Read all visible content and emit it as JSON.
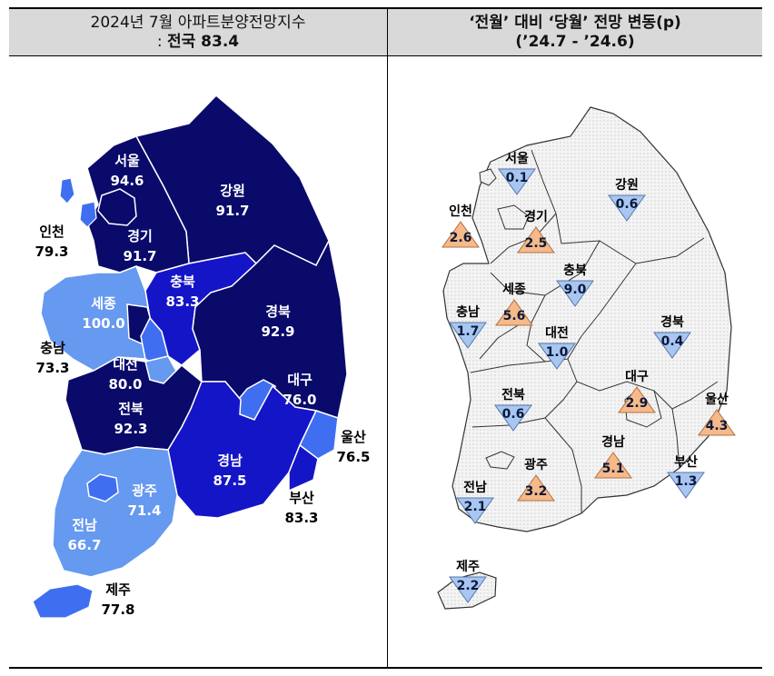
{
  "header_left": {
    "line1": "2024년 7월 아파트분양전망지수",
    "line2_prefix": ": ",
    "line2_bold": "전국 83.4"
  },
  "header_right": {
    "line1": "‘전월’ 대비 ‘당월’ 전망 변동(p)",
    "line2": "(’24.7   -  ’24.6)"
  },
  "colors": {
    "navy": "#0a0a6b",
    "blue": "#1515c8",
    "mid_blue": "#3f6ff0",
    "light_blue": "#6699f0",
    "up_fill": "#f6b98a",
    "down_fill": "#a9c6f2"
  },
  "chart_data": [
    {
      "type": "map",
      "title": "2024년 7월 아파트분양전망지수",
      "subtitle": "전국 83.4",
      "regions": [
        {
          "name": "서울",
          "value": "94.6"
        },
        {
          "name": "인천",
          "value": "79.3"
        },
        {
          "name": "경기",
          "value": "91.7"
        },
        {
          "name": "강원",
          "value": "91.7"
        },
        {
          "name": "세종",
          "value": "100.0"
        },
        {
          "name": "충북",
          "value": "83.3"
        },
        {
          "name": "충남",
          "value": "73.3"
        },
        {
          "name": "대전",
          "value": "80.0"
        },
        {
          "name": "경북",
          "value": "92.9"
        },
        {
          "name": "대구",
          "value": "76.0"
        },
        {
          "name": "전북",
          "value": "92.3"
        },
        {
          "name": "울산",
          "value": "76.5"
        },
        {
          "name": "경남",
          "value": "87.5"
        },
        {
          "name": "부산",
          "value": "83.3"
        },
        {
          "name": "광주",
          "value": "71.4"
        },
        {
          "name": "전남",
          "value": "66.7"
        },
        {
          "name": "제주",
          "value": "77.8"
        }
      ]
    },
    {
      "type": "map",
      "title": "‘전월’ 대비 ‘당월’ 전망 변동(p)",
      "regions": [
        {
          "name": "서울",
          "value": "0.1",
          "direction": "down"
        },
        {
          "name": "인천",
          "value": "2.6",
          "direction": "up"
        },
        {
          "name": "경기",
          "value": "2.5",
          "direction": "up"
        },
        {
          "name": "강원",
          "value": "0.6",
          "direction": "down"
        },
        {
          "name": "세종",
          "value": "5.6",
          "direction": "up"
        },
        {
          "name": "충북",
          "value": "9.0",
          "direction": "down"
        },
        {
          "name": "충남",
          "value": "1.7",
          "direction": "down"
        },
        {
          "name": "대전",
          "value": "1.0",
          "direction": "down"
        },
        {
          "name": "경북",
          "value": "0.4",
          "direction": "down"
        },
        {
          "name": "대구",
          "value": "2.9",
          "direction": "up"
        },
        {
          "name": "전북",
          "value": "0.6",
          "direction": "down"
        },
        {
          "name": "울산",
          "value": "4.3",
          "direction": "up"
        },
        {
          "name": "경남",
          "value": "5.1",
          "direction": "up"
        },
        {
          "name": "부산",
          "value": "1.3",
          "direction": "down"
        },
        {
          "name": "광주",
          "value": "3.2",
          "direction": "up"
        },
        {
          "name": "전남",
          "value": "2.1",
          "direction": "down"
        },
        {
          "name": "제주",
          "value": "2.2",
          "direction": "down"
        }
      ]
    }
  ]
}
